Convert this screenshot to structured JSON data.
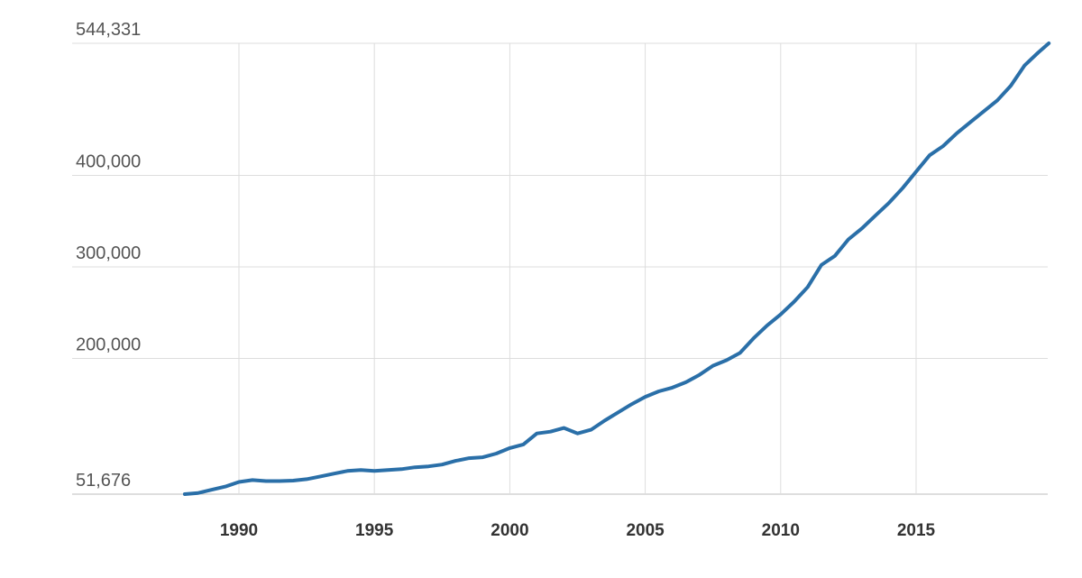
{
  "chart_data": {
    "type": "line",
    "title": "",
    "xlabel": "",
    "ylabel": "",
    "xlim": [
      1988,
      2019.9
    ],
    "ylim": [
      51676,
      544331
    ],
    "grid": true,
    "x_ticks": [
      {
        "value": 1990,
        "label": "1990"
      },
      {
        "value": 1995,
        "label": "1995"
      },
      {
        "value": 2000,
        "label": "2000"
      },
      {
        "value": 2005,
        "label": "2005"
      },
      {
        "value": 2010,
        "label": "2010"
      },
      {
        "value": 2015,
        "label": "2015"
      }
    ],
    "y_ticks": [
      {
        "value": 51676,
        "label": "51,676"
      },
      {
        "value": 200000,
        "label": "200,000"
      },
      {
        "value": 300000,
        "label": "300,000"
      },
      {
        "value": 400000,
        "label": "400,000"
      },
      {
        "value": 544331,
        "label": "544,331"
      }
    ],
    "series": [
      {
        "color": "#2a6fa8",
        "points": [
          [
            1988.0,
            51676
          ],
          [
            1988.5,
            53000
          ],
          [
            1989.0,
            56500
          ],
          [
            1989.5,
            60000
          ],
          [
            1990.0,
            65000
          ],
          [
            1990.5,
            67000
          ],
          [
            1991.0,
            66000
          ],
          [
            1991.5,
            66000
          ],
          [
            1992.0,
            66500
          ],
          [
            1992.5,
            68000
          ],
          [
            1993.0,
            71000
          ],
          [
            1993.5,
            74000
          ],
          [
            1994.0,
            77000
          ],
          [
            1994.5,
            78000
          ],
          [
            1995.0,
            77000
          ],
          [
            1995.5,
            78000
          ],
          [
            1996.0,
            79000
          ],
          [
            1996.5,
            81000
          ],
          [
            1997.0,
            82000
          ],
          [
            1997.5,
            84000
          ],
          [
            1998.0,
            88000
          ],
          [
            1998.5,
            91000
          ],
          [
            1999.0,
            92000
          ],
          [
            1999.5,
            96000
          ],
          [
            2000.0,
            102000
          ],
          [
            2000.5,
            106000
          ],
          [
            2001.0,
            118000
          ],
          [
            2001.5,
            120000
          ],
          [
            2002.0,
            124000
          ],
          [
            2002.5,
            118000
          ],
          [
            2003.0,
            122000
          ],
          [
            2003.5,
            132000
          ],
          [
            2004.0,
            141000
          ],
          [
            2004.5,
            150000
          ],
          [
            2005.0,
            158000
          ],
          [
            2005.5,
            164000
          ],
          [
            2006.0,
            168000
          ],
          [
            2006.5,
            174000
          ],
          [
            2007.0,
            182000
          ],
          [
            2007.5,
            192000
          ],
          [
            2008.0,
            198000
          ],
          [
            2008.5,
            206000
          ],
          [
            2009.0,
            222000
          ],
          [
            2009.5,
            236000
          ],
          [
            2010.0,
            248000
          ],
          [
            2010.5,
            262000
          ],
          [
            2011.0,
            278000
          ],
          [
            2011.5,
            302000
          ],
          [
            2012.0,
            312000
          ],
          [
            2012.5,
            330000
          ],
          [
            2013.0,
            342000
          ],
          [
            2013.5,
            356000
          ],
          [
            2014.0,
            370000
          ],
          [
            2014.5,
            386000
          ],
          [
            2015.0,
            404000
          ],
          [
            2015.5,
            422000
          ],
          [
            2016.0,
            432000
          ],
          [
            2016.5,
            446000
          ],
          [
            2017.0,
            458000
          ],
          [
            2017.5,
            470000
          ],
          [
            2018.0,
            482000
          ],
          [
            2018.5,
            498000
          ],
          [
            2019.0,
            520000
          ],
          [
            2019.5,
            534000
          ],
          [
            2019.9,
            544331
          ]
        ]
      }
    ]
  }
}
